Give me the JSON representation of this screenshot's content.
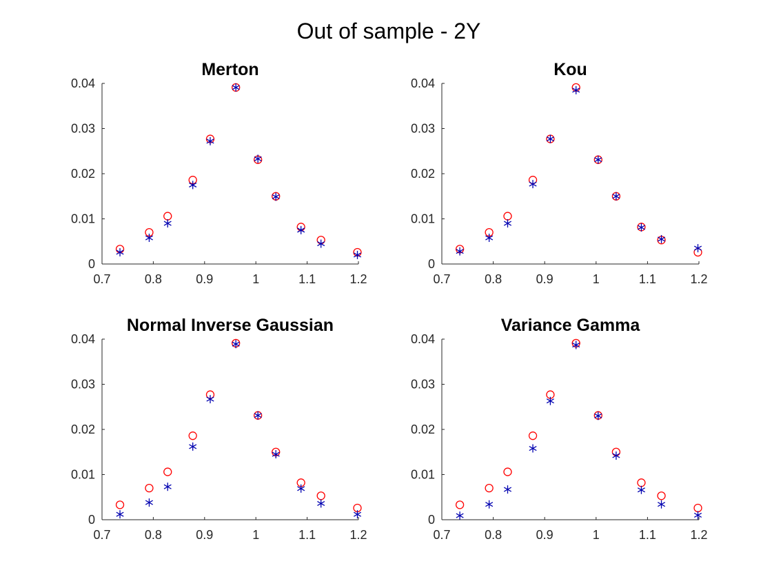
{
  "figure": {
    "title": "Out of sample - 2Y"
  },
  "style": {
    "circle_color": "#ff0000",
    "star_color": "#0000b0",
    "axis_color": "#262626"
  },
  "chart_data": [
    {
      "type": "scatter",
      "title": "Merton",
      "xlim": [
        0.7,
        1.2
      ],
      "ylim": [
        0,
        0.04
      ],
      "xticks": [
        "0.7",
        "0.8",
        "0.9",
        "1",
        "1.1",
        "1.2"
      ],
      "yticks": [
        "0",
        "0.01",
        "0.02",
        "0.03",
        "0.04"
      ],
      "grid": false,
      "x": [
        0.735,
        0.792,
        0.828,
        0.877,
        0.911,
        0.961,
        1.004,
        1.039,
        1.088,
        1.127,
        1.198
      ],
      "series": [
        {
          "marker": "circle",
          "values": [
            0.0033,
            0.007,
            0.0106,
            0.0186,
            0.0277,
            0.0391,
            0.0231,
            0.015,
            0.0082,
            0.0053,
            0.0026
          ]
        },
        {
          "marker": "star",
          "values": [
            0.0026,
            0.0058,
            0.009,
            0.0175,
            0.0272,
            0.0391,
            0.0233,
            0.0149,
            0.0075,
            0.0045,
            0.002
          ]
        }
      ]
    },
    {
      "type": "scatter",
      "title": "Kou",
      "xlim": [
        0.7,
        1.2
      ],
      "ylim": [
        0,
        0.04
      ],
      "xticks": [
        "0.7",
        "0.8",
        "0.9",
        "1",
        "1.1",
        "1.2"
      ],
      "yticks": [
        "0",
        "0.01",
        "0.02",
        "0.03",
        "0.04"
      ],
      "grid": false,
      "x": [
        0.735,
        0.792,
        0.828,
        0.877,
        0.911,
        0.961,
        1.004,
        1.039,
        1.088,
        1.127,
        1.198
      ],
      "series": [
        {
          "marker": "circle",
          "values": [
            0.0033,
            0.007,
            0.0106,
            0.0186,
            0.0277,
            0.0391,
            0.0231,
            0.015,
            0.0082,
            0.0053,
            0.0026
          ]
        },
        {
          "marker": "star",
          "values": [
            0.0028,
            0.0058,
            0.009,
            0.0177,
            0.0277,
            0.0385,
            0.0231,
            0.015,
            0.0081,
            0.0055,
            0.0035
          ]
        }
      ]
    },
    {
      "type": "scatter",
      "title": "Normal Inverse Gaussian",
      "xlim": [
        0.7,
        1.2
      ],
      "ylim": [
        0,
        0.04
      ],
      "xticks": [
        "0.7",
        "0.8",
        "0.9",
        "1",
        "1.1",
        "1.2"
      ],
      "yticks": [
        "0",
        "0.01",
        "0.02",
        "0.03",
        "0.04"
      ],
      "grid": false,
      "x": [
        0.735,
        0.792,
        0.828,
        0.877,
        0.911,
        0.961,
        1.004,
        1.039,
        1.088,
        1.127,
        1.198
      ],
      "series": [
        {
          "marker": "circle",
          "values": [
            0.0033,
            0.007,
            0.0106,
            0.0186,
            0.0277,
            0.0391,
            0.0231,
            0.015,
            0.0082,
            0.0053,
            0.0026
          ]
        },
        {
          "marker": "star",
          "values": [
            0.0012,
            0.0038,
            0.0073,
            0.0162,
            0.0267,
            0.0389,
            0.0231,
            0.0145,
            0.0069,
            0.0036,
            0.0012
          ]
        }
      ]
    },
    {
      "type": "scatter",
      "title": "Variance Gamma",
      "xlim": [
        0.7,
        1.2
      ],
      "ylim": [
        0,
        0.04
      ],
      "xticks": [
        "0.7",
        "0.8",
        "0.9",
        "1",
        "1.1",
        "1.2"
      ],
      "yticks": [
        "0",
        "0.01",
        "0.02",
        "0.03",
        "0.04"
      ],
      "grid": false,
      "x": [
        0.735,
        0.792,
        0.828,
        0.877,
        0.911,
        0.961,
        1.004,
        1.039,
        1.088,
        1.127,
        1.198
      ],
      "series": [
        {
          "marker": "circle",
          "values": [
            0.0033,
            0.007,
            0.0106,
            0.0186,
            0.0277,
            0.0391,
            0.0231,
            0.015,
            0.0082,
            0.0053,
            0.0026
          ]
        },
        {
          "marker": "star",
          "values": [
            0.0009,
            0.0034,
            0.0067,
            0.0158,
            0.0263,
            0.0387,
            0.023,
            0.0142,
            0.0066,
            0.0034,
            0.001
          ]
        }
      ]
    }
  ]
}
